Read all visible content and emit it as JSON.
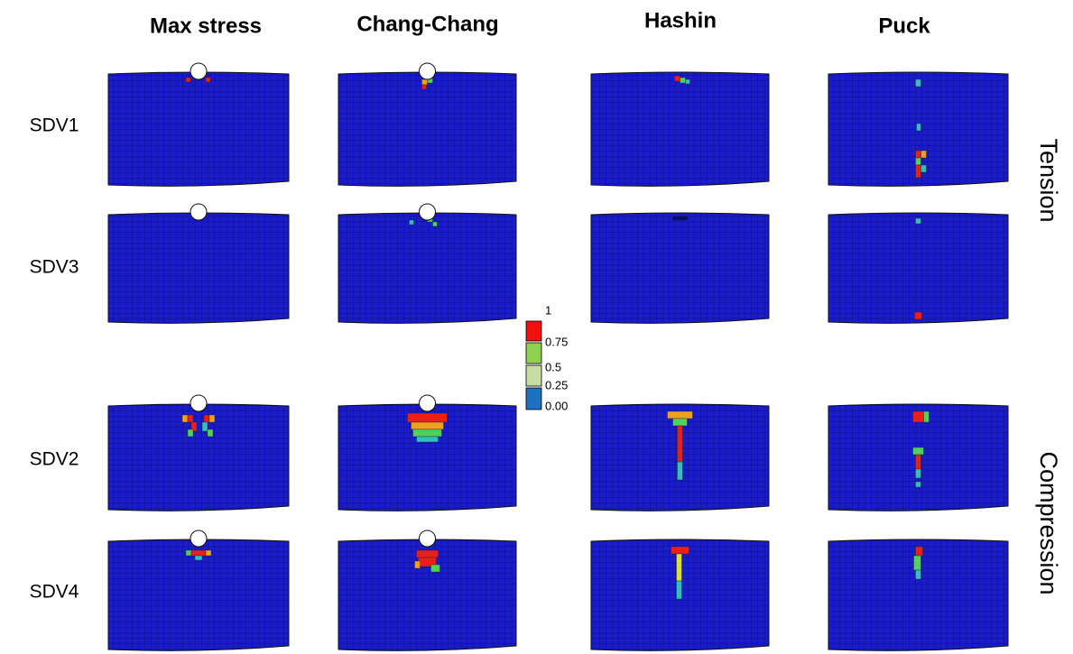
{
  "columns": [
    "Max stress",
    "Chang-Chang",
    "Hashin",
    "Puck"
  ],
  "rows": [
    "SDV1",
    "SDV3",
    "SDV2",
    "SDV4"
  ],
  "groups": [
    "Tension",
    "Compression"
  ],
  "legend": {
    "labels": [
      "1",
      "0.75",
      "0.5",
      "0.25",
      "0.00"
    ]
  }
}
